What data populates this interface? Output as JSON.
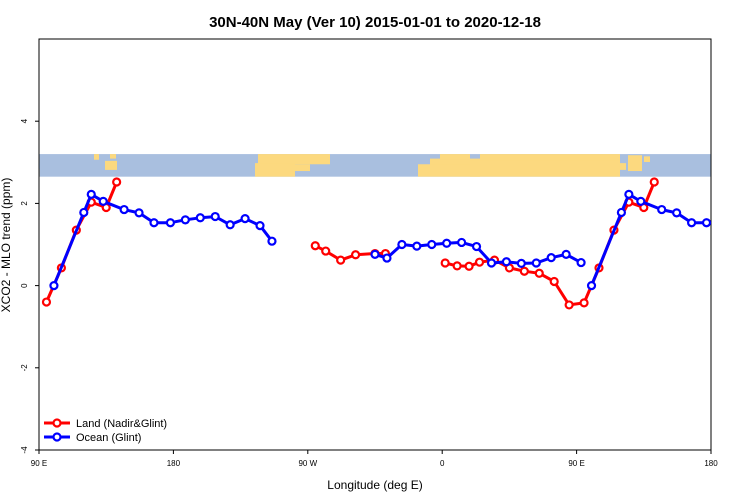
{
  "chart_data": {
    "type": "line",
    "title": "30N-40N May (Ver 10)   2015-01-01 to 2020-12-18",
    "xlabel": "Longitude (deg E)",
    "ylabel": "XCO2 - MLO trend (ppm)",
    "xlim": [
      90,
      540
    ],
    "ylim": [
      -4,
      6
    ],
    "x_ticks": [
      {
        "value": 90,
        "label": "90 E"
      },
      {
        "value": 180,
        "label": "180"
      },
      {
        "value": 270,
        "label": "90 W"
      },
      {
        "value": 360,
        "label": "0"
      },
      {
        "value": 450,
        "label": "90 E"
      },
      {
        "value": 540,
        "label": "180"
      }
    ],
    "y_ticks": [
      {
        "value": -4,
        "label": "-4"
      },
      {
        "value": -2,
        "label": "-2"
      },
      {
        "value": 0,
        "label": "0"
      },
      {
        "value": 2,
        "label": "2"
      },
      {
        "value": 4,
        "label": "4"
      }
    ],
    "legend_position": "bottom-left",
    "map_strip": {
      "y_range": [
        2.65,
        3.2
      ],
      "ocean_color": "#a9bfdf",
      "land_color": "#fcd97f"
    },
    "series": [
      {
        "name": "Land (Nadir&Glint)",
        "color": "#ff0000",
        "segments": [
          [
            [
              95,
              -0.4
            ],
            [
              105,
              0.43
            ],
            [
              115,
              1.35
            ],
            [
              125,
              2.03
            ],
            [
              135,
              1.9
            ],
            [
              142,
              2.52
            ]
          ],
          [
            [
              275,
              0.97
            ],
            [
              282,
              0.84
            ],
            [
              292,
              0.62
            ],
            [
              302,
              0.75
            ],
            [
              315,
              0.78
            ],
            [
              322,
              0.78
            ]
          ],
          [
            [
              362,
              0.55
            ],
            [
              370,
              0.48
            ],
            [
              378,
              0.47
            ],
            [
              385,
              0.57
            ],
            [
              395,
              0.62
            ],
            [
              405,
              0.43
            ],
            [
              415,
              0.35
            ],
            [
              425,
              0.3
            ],
            [
              435,
              0.1
            ],
            [
              445,
              -0.47
            ],
            [
              455,
              -0.42
            ],
            [
              465,
              0.43
            ],
            [
              475,
              1.35
            ],
            [
              485,
              2.03
            ],
            [
              495,
              1.9
            ],
            [
              502,
              2.52
            ]
          ]
        ]
      },
      {
        "name": "Ocean (Glint)",
        "color": "#0000ff",
        "segments": [
          [
            [
              100,
              0.0
            ],
            [
              120,
              1.78
            ],
            [
              125,
              2.22
            ],
            [
              133,
              2.05
            ],
            [
              147,
              1.85
            ],
            [
              157,
              1.77
            ],
            [
              167,
              1.53
            ],
            [
              178,
              1.53
            ],
            [
              188,
              1.6
            ],
            [
              198,
              1.65
            ],
            [
              208,
              1.68
            ],
            [
              218,
              1.48
            ],
            [
              228,
              1.63
            ],
            [
              238,
              1.46
            ],
            [
              246,
              1.08
            ]
          ],
          [
            [
              315,
              0.76
            ],
            [
              323,
              0.67
            ],
            [
              333,
              1.0
            ],
            [
              343,
              0.96
            ],
            [
              353,
              1.0
            ],
            [
              363,
              1.03
            ],
            [
              373,
              1.05
            ],
            [
              383,
              0.95
            ],
            [
              393,
              0.55
            ],
            [
              403,
              0.58
            ],
            [
              413,
              0.54
            ],
            [
              423,
              0.55
            ],
            [
              433,
              0.68
            ],
            [
              443,
              0.76
            ],
            [
              453,
              0.56
            ]
          ],
          [
            [
              460,
              0.0
            ],
            [
              480,
              1.78
            ],
            [
              485,
              2.22
            ],
            [
              493,
              2.05
            ],
            [
              507,
              1.85
            ],
            [
              517,
              1.77
            ],
            [
              527,
              1.53
            ],
            [
              537,
              1.53
            ]
          ]
        ]
      }
    ]
  }
}
